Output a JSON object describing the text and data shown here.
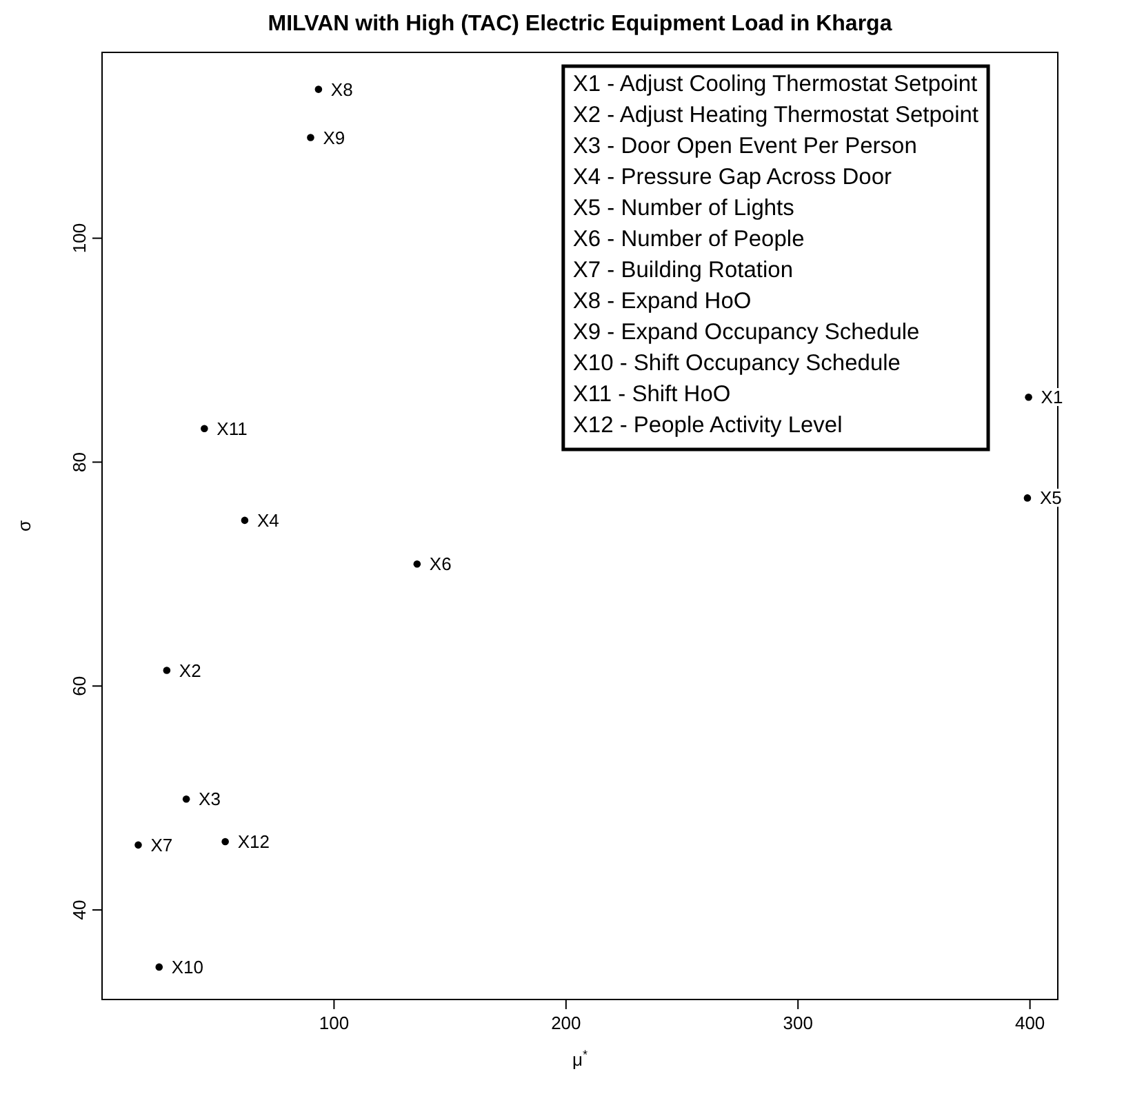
{
  "chart_data": {
    "type": "scatter",
    "title": "MILVAN with High (TAC) Electric Equipment Load in Kharga",
    "xlabel": "μ$^{*}$",
    "ylabel": "σ",
    "x": [
      399.4,
      27.9,
      36.3,
      61.5,
      398.9,
      135.8,
      15.6,
      93.3,
      89.9,
      24.6,
      44.1,
      53.1
    ],
    "values": [
      85.8,
      61.4,
      49.9,
      74.8,
      76.8,
      70.9,
      45.8,
      113.3,
      109,
      34.9,
      83.0,
      46.1
    ],
    "color": "#000000",
    "marker": "circle",
    "grid": false,
    "xlim": [
      0,
      412
    ],
    "xticks": [
      100,
      200,
      300,
      400
    ],
    "ylim": [
      32,
      116.6
    ],
    "yticks": [
      40,
      60,
      80,
      100
    ],
    "annotations": [
      {
        "text": "X1",
        "x": 399.4,
        "y": 85.8
      },
      {
        "text": "X2",
        "x": 27.9,
        "y": 61.4
      },
      {
        "text": "X3",
        "x": 36.3,
        "y": 49.9
      },
      {
        "text": "X4",
        "x": 61.5,
        "y": 74.8
      },
      {
        "text": "X5",
        "x": 398.9,
        "y": 76.8
      },
      {
        "text": "X6",
        "x": 135.8,
        "y": 70.9
      },
      {
        "text": "X7",
        "x": 15.6,
        "y": 45.8
      },
      {
        "text": "X8",
        "x": 93.3,
        "y": 113.3
      },
      {
        "text": "X9",
        "x": 89.9,
        "y": 109
      },
      {
        "text": "X10",
        "x": 24.6,
        "y": 34.9
      },
      {
        "text": "X11",
        "x": 44.1,
        "y": 83.0
      },
      {
        "text": "X12",
        "x": 53.1,
        "y": 46.1
      },
      "X1 - Adjust Cooling Thermostat Setpoint",
      "X2 - Adjust Heating Thermostat Setpoint",
      "X3 - Door Open Event Per Person",
      "X4 - Pressure Gap Across Door",
      "X5 - Number of Lights",
      "X6 - Number of People",
      "X7 - Building Rotation",
      "X8 - Expand HoO",
      "X9 - Expand Occupancy Schedule",
      "X10 - Shift Occupancy Schedule",
      "X11 - Shift HoO",
      "X12 - People Activity Level"
    ]
  }
}
